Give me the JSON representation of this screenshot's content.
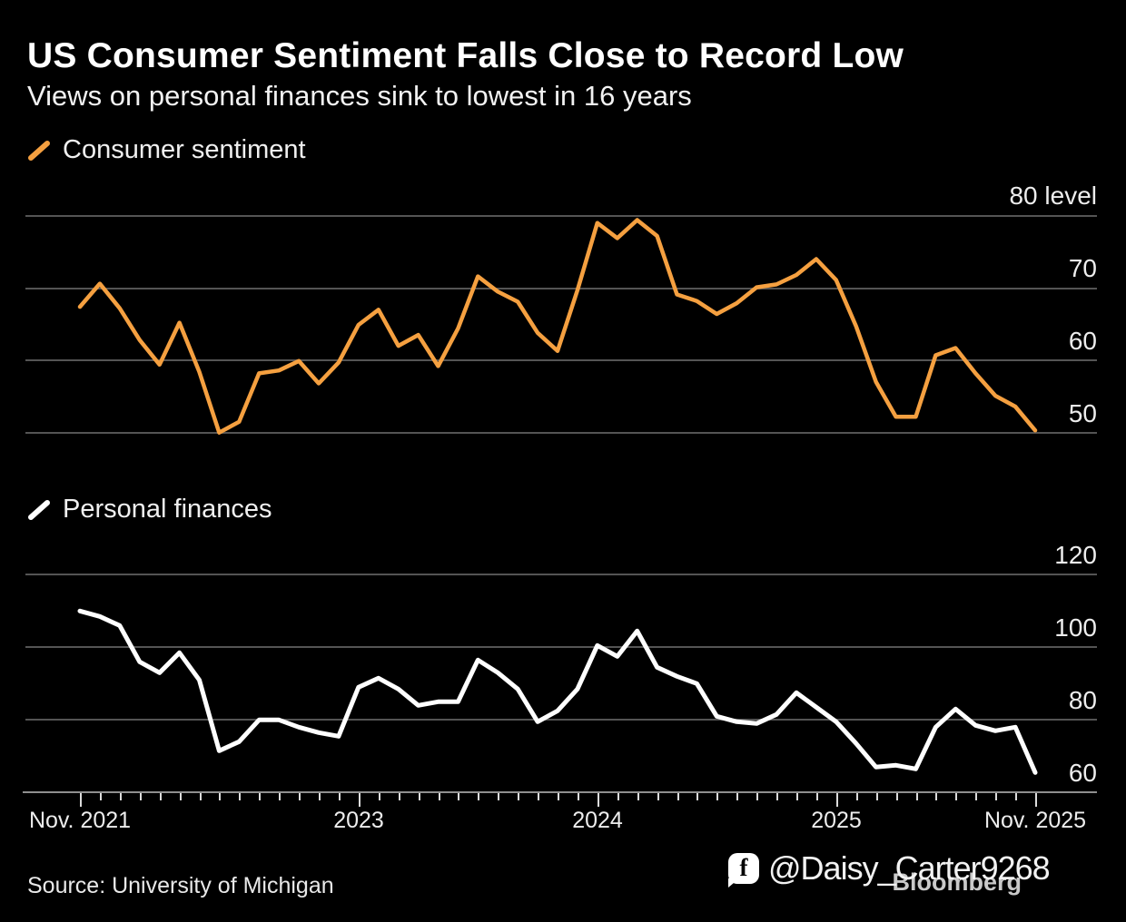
{
  "header": {
    "title": "US Consumer Sentiment Falls Close to Record Low",
    "subtitle": "Views on personal finances sink to lowest in 16 years"
  },
  "chart_data": [
    {
      "type": "line",
      "series_name": "Consumer sentiment",
      "color": "#F5A040",
      "x_start": "Nov 2021",
      "x_end": "Nov 2025",
      "x_frequency": "monthly",
      "y_tick_labels": [
        "80 level",
        "70",
        "60",
        "50"
      ],
      "y_gridline_values": [
        80,
        70,
        60,
        50
      ],
      "ylim": [
        48,
        82.5
      ],
      "legend_position": "top-left",
      "grid": "horizontal-only",
      "values": [
        67.4,
        70.6,
        67.2,
        62.8,
        59.4,
        65.2,
        58.4,
        50.0,
        51.5,
        58.2,
        58.6,
        59.9,
        56.8,
        59.7,
        64.9,
        67.0,
        62.0,
        63.5,
        59.2,
        64.4,
        71.6,
        69.5,
        68.1,
        63.8,
        61.3,
        69.7,
        79.0,
        76.9,
        79.4,
        77.2,
        69.1,
        68.2,
        66.4,
        67.9,
        70.1,
        70.5,
        71.8,
        74.0,
        71.1,
        64.7,
        57.0,
        52.2,
        52.2,
        60.7,
        61.7,
        58.2,
        55.1,
        53.6,
        50.3
      ]
    },
    {
      "type": "line",
      "series_name": "Personal finances",
      "color": "#FFFFFF",
      "x_start": "Nov 2021",
      "x_end": "Nov 2025",
      "x_frequency": "monthly",
      "y_tick_labels": [
        "120",
        "100",
        "80",
        "60"
      ],
      "y_gridline_values": [
        120,
        100,
        80,
        60
      ],
      "ylim": [
        57.5,
        130
      ],
      "legend_position": "top-left",
      "grid": "horizontal-only",
      "values": [
        110,
        108.5,
        106,
        96,
        93,
        98.5,
        91,
        71.5,
        74,
        80,
        80,
        78,
        76.5,
        75.5,
        89,
        91.5,
        88.5,
        84,
        85,
        85,
        96.5,
        93,
        88.5,
        79.5,
        82.5,
        88.5,
        100.5,
        97.5,
        104.5,
        94.5,
        92,
        90,
        81,
        79.5,
        79,
        81.5,
        87.5,
        83.5,
        79.5,
        73.5,
        67,
        67.5,
        66.5,
        78,
        83,
        78.5,
        77,
        78,
        65.5
      ]
    }
  ],
  "x_axis": {
    "labels": [
      "Nov. 2021",
      "2023",
      "2024",
      "2025",
      "Nov. 2025"
    ],
    "major_tick_indices": [
      0,
      14,
      26,
      38,
      48
    ],
    "months": 49
  },
  "footer": {
    "source": "Source: University of Michigan",
    "brand": "Bloomberg",
    "watermark": "@Daisy_Carter9268",
    "watermark_icon": "facebook-icon",
    "fb_letter": "f"
  }
}
